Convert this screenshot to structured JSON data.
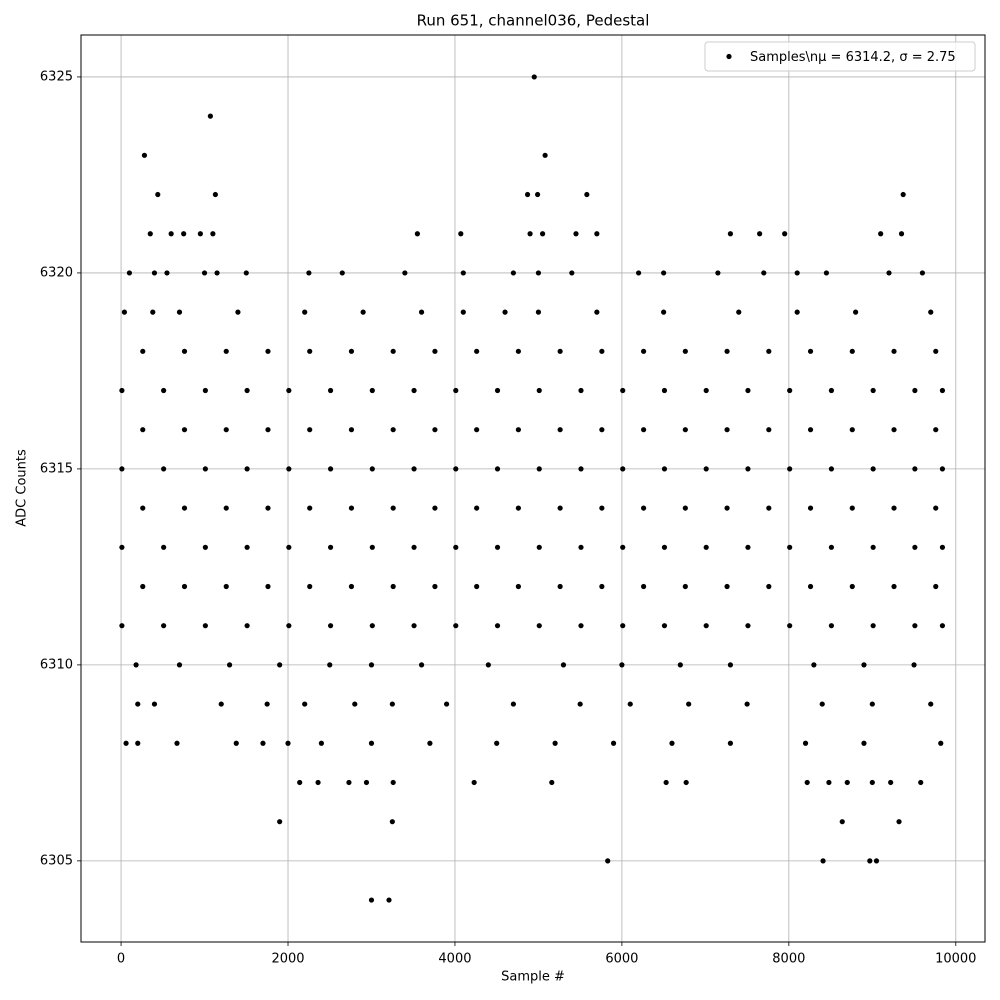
{
  "chart_data": {
    "type": "scatter",
    "title": "Run 651, channel036, Pedestal",
    "x_label": "Sample #",
    "y_label": "ADC Counts",
    "xlim": [
      -480,
      10350
    ],
    "ylim": [
      6302.93,
      6326.07
    ],
    "xticks": [
      0,
      2000,
      4000,
      6000,
      8000,
      10000
    ],
    "yticks": [
      6305,
      6310,
      6315,
      6320,
      6325
    ],
    "grid": true,
    "legend": "upper right",
    "series": [
      {
        "name": "Samples\\nμ = 6314.2, σ = 2.75",
        "color": "#000000",
        "x": [
          10,
          510,
          1010,
          1510,
          2010,
          2510,
          3010,
          3510,
          4010,
          4510,
          5010,
          5510,
          6010,
          6510,
          7010,
          7510,
          8010,
          8510,
          9010,
          9510,
          9840,
          260,
          760,
          1260,
          1760,
          2260,
          2760,
          3260,
          3760,
          4260,
          4760,
          5260,
          5760,
          6260,
          6760,
          7260,
          7760,
          8260,
          8760,
          9260,
          9760,
          10,
          510,
          1010,
          1510,
          2010,
          2510,
          3010,
          3510,
          4010,
          4510,
          5010,
          5510,
          6010,
          6510,
          7010,
          7510,
          8010,
          8510,
          9010,
          9510,
          9840,
          260,
          760,
          1260,
          1760,
          2260,
          2760,
          3260,
          3760,
          4260,
          4760,
          5260,
          5760,
          6260,
          6760,
          7260,
          7760,
          8260,
          8760,
          9260,
          9760,
          10,
          510,
          1010,
          1510,
          2010,
          2510,
          3010,
          3510,
          4010,
          4510,
          5010,
          5510,
          6010,
          6510,
          7010,
          7510,
          8010,
          8510,
          9010,
          9510,
          9840,
          260,
          760,
          1260,
          1760,
          2260,
          2760,
          3260,
          3760,
          4260,
          4760,
          5260,
          5760,
          6260,
          6760,
          7260,
          7760,
          8260,
          8760,
          9260,
          9760,
          10,
          510,
          1010,
          1510,
          2010,
          2510,
          3010,
          3510,
          4010,
          4510,
          5010,
          5510,
          6010,
          6510,
          7010,
          7510,
          8010,
          8510,
          9010,
          9510,
          9840,
          260,
          760,
          1260,
          1760,
          2260,
          2760,
          3260,
          3760,
          4260,
          4760,
          5260,
          5760,
          6260,
          6760,
          7260,
          7760,
          8260,
          8760,
          9260,
          9760,
          40,
          380,
          700,
          1400,
          2200,
          2900,
          3600,
          4100,
          4600,
          5000,
          5700,
          6500,
          7400,
          8100,
          8800,
          9700,
          180,
          700,
          1300,
          1900,
          2500,
          3000,
          3600,
          4400,
          5300,
          6000,
          6700,
          7300,
          8300,
          8900,
          9500,
          200,
          400,
          1200,
          1750,
          2200,
          2800,
          3250,
          3900,
          4700,
          5500,
          6100,
          6800,
          7500,
          8400,
          9000,
          9700,
          60,
          200,
          670,
          1380,
          1700,
          2000,
          2400,
          3000,
          3700,
          4500,
          5200,
          5900,
          6600,
          7300,
          8200,
          8900,
          9820,
          100,
          400,
          550,
          1000,
          1150,
          1500,
          2250,
          2650,
          3400,
          4100,
          4700,
          5000,
          5400,
          6200,
          6500,
          7150,
          7700,
          8100,
          8450,
          9200,
          9600,
          350,
          600,
          750,
          950,
          1100,
          3550,
          4070,
          4900,
          5050,
          5450,
          5700,
          7300,
          7650,
          7950,
          9100,
          9350,
          440,
          1130,
          4870,
          4990,
          5580,
          9370,
          280,
          5080,
          1070,
          4950,
          2140,
          2360,
          2730,
          2940,
          3260,
          4230,
          5160,
          6530,
          6770,
          8220,
          8480,
          8700,
          9000,
          9220,
          9580,
          1900,
          3250,
          8640,
          9320,
          5830,
          8410,
          8970,
          9050,
          3000,
          3210
        ],
        "values": [
          6311,
          6311,
          6311,
          6311,
          6311,
          6311,
          6311,
          6311,
          6311,
          6311,
          6311,
          6311,
          6311,
          6311,
          6311,
          6311,
          6311,
          6311,
          6311,
          6311,
          6311,
          6312,
          6312,
          6312,
          6312,
          6312,
          6312,
          6312,
          6312,
          6312,
          6312,
          6312,
          6312,
          6312,
          6312,
          6312,
          6312,
          6312,
          6312,
          6312,
          6312,
          6313,
          6313,
          6313,
          6313,
          6313,
          6313,
          6313,
          6313,
          6313,
          6313,
          6313,
          6313,
          6313,
          6313,
          6313,
          6313,
          6313,
          6313,
          6313,
          6313,
          6313,
          6314,
          6314,
          6314,
          6314,
          6314,
          6314,
          6314,
          6314,
          6314,
          6314,
          6314,
          6314,
          6314,
          6314,
          6314,
          6314,
          6314,
          6314,
          6314,
          6314,
          6315,
          6315,
          6315,
          6315,
          6315,
          6315,
          6315,
          6315,
          6315,
          6315,
          6315,
          6315,
          6315,
          6315,
          6315,
          6315,
          6315,
          6315,
          6315,
          6315,
          6315,
          6316,
          6316,
          6316,
          6316,
          6316,
          6316,
          6316,
          6316,
          6316,
          6316,
          6316,
          6316,
          6316,
          6316,
          6316,
          6316,
          6316,
          6316,
          6316,
          6316,
          6317,
          6317,
          6317,
          6317,
          6317,
          6317,
          6317,
          6317,
          6317,
          6317,
          6317,
          6317,
          6317,
          6317,
          6317,
          6317,
          6317,
          6317,
          6317,
          6317,
          6317,
          6318,
          6318,
          6318,
          6318,
          6318,
          6318,
          6318,
          6318,
          6318,
          6318,
          6318,
          6318,
          6318,
          6318,
          6318,
          6318,
          6318,
          6318,
          6318,
          6318,
          6319,
          6319,
          6319,
          6319,
          6319,
          6319,
          6319,
          6319,
          6319,
          6319,
          6319,
          6319,
          6319,
          6319,
          6319,
          6319,
          6310,
          6310,
          6310,
          6310,
          6310,
          6310,
          6310,
          6310,
          6310,
          6310,
          6310,
          6310,
          6310,
          6310,
          6310,
          6309,
          6309,
          6309,
          6309,
          6309,
          6309,
          6309,
          6309,
          6309,
          6309,
          6309,
          6309,
          6309,
          6309,
          6309,
          6309,
          6308,
          6308,
          6308,
          6308,
          6308,
          6308,
          6308,
          6308,
          6308,
          6308,
          6308,
          6308,
          6308,
          6308,
          6308,
          6308,
          6308,
          6320,
          6320,
          6320,
          6320,
          6320,
          6320,
          6320,
          6320,
          6320,
          6320,
          6320,
          6320,
          6320,
          6320,
          6320,
          6320,
          6320,
          6320,
          6320,
          6320,
          6320,
          6321,
          6321,
          6321,
          6321,
          6321,
          6321,
          6321,
          6321,
          6321,
          6321,
          6321,
          6321,
          6321,
          6321,
          6321,
          6321,
          6322,
          6322,
          6322,
          6322,
          6322,
          6322,
          6323,
          6323,
          6324,
          6325,
          6307,
          6307,
          6307,
          6307,
          6307,
          6307,
          6307,
          6307,
          6307,
          6307,
          6307,
          6307,
          6307,
          6307,
          6307,
          6306,
          6306,
          6306,
          6306,
          6305,
          6305,
          6305,
          6305,
          6304,
          6304
        ]
      }
    ]
  }
}
